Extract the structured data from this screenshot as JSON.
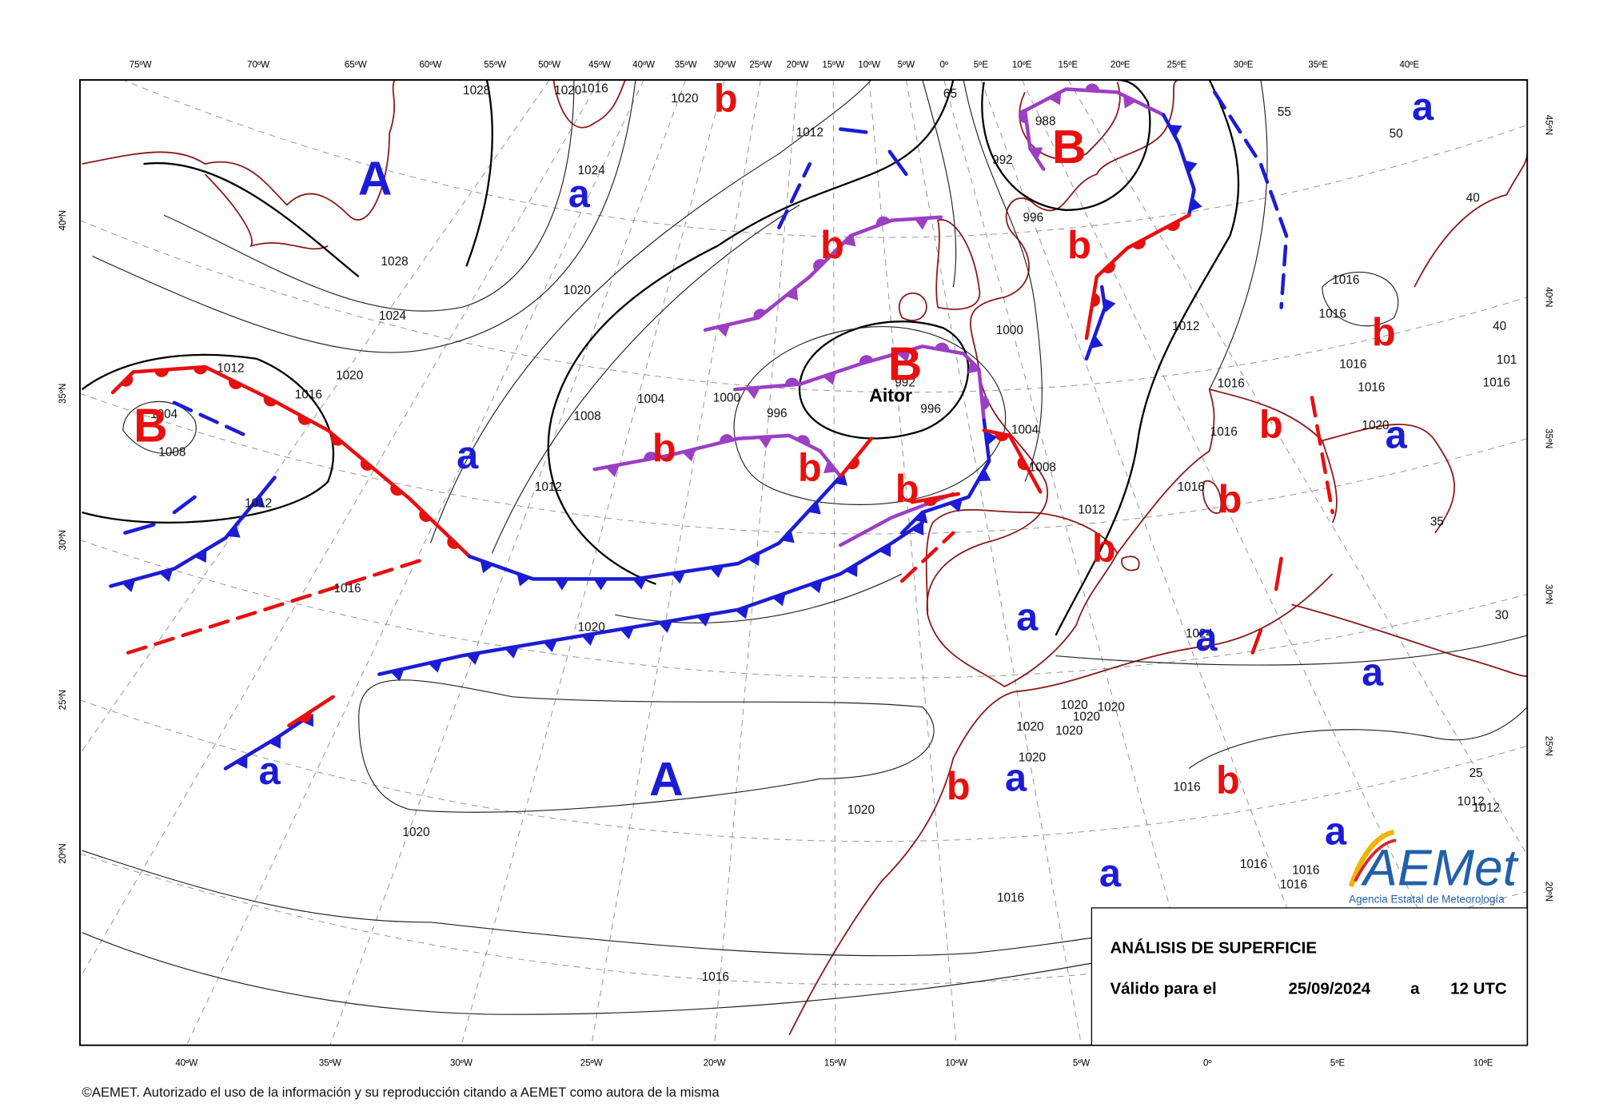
{
  "map": {
    "top_longitudes": [
      "75ºW",
      "70ºW",
      "65ºW",
      "60ºW",
      "55ºW",
      "50ºW",
      "45ºW",
      "40ºW",
      "35ºW",
      "30ºW",
      "25ºW",
      "20ºW",
      "15ºW",
      "10ºW",
      "5ºW",
      "0º",
      "5ºE",
      "10ºE",
      "15ºE",
      "20ºE",
      "25ºE",
      "30ºE",
      "35ºE",
      "40ºE"
    ],
    "bottom_longitudes": [
      "40ºW",
      "35ºW",
      "30ºW",
      "25ºW",
      "20ºW",
      "15ºW",
      "10ºW",
      "5ºW",
      "0º",
      "5ºE",
      "10ºE"
    ],
    "left_latitudes": [
      "40ºN",
      "35ºN",
      "30ºN",
      "25ºN",
      "20ºN"
    ],
    "right_latitudes": [
      "45ºN",
      "40ºN",
      "35ºN",
      "30ºN",
      "25ºN",
      "20ºN"
    ],
    "high_color": "#1c1cd6",
    "low_color": "#e80f0f",
    "highs": [
      "A",
      "a",
      "a",
      "a",
      "a",
      "a",
      "a",
      "a",
      "a",
      "A",
      "a",
      "a",
      "a"
    ],
    "lows": [
      "b",
      "B",
      "b",
      "b",
      "B",
      "B",
      "b",
      "b",
      "b",
      "b",
      "b",
      "b",
      "b",
      "b",
      "b"
    ],
    "storm_name": "Aitor",
    "isobar_labels": [
      "1028",
      "1020",
      "1016",
      "1020",
      "1012",
      "1024",
      "1028",
      "1024",
      "1020",
      "1020",
      "1016",
      "1012",
      "1004",
      "1008",
      "1012",
      "1008",
      "1004",
      "1000",
      "996",
      "996",
      "992",
      "1012",
      "1000",
      "1004",
      "1008",
      "1012",
      "996",
      "992",
      "988",
      "65",
      "55",
      "50",
      "1012",
      "1016",
      "1016",
      "1016",
      "1016",
      "1016",
      "1016",
      "1020",
      "1016",
      "1016",
      "1020",
      "1024",
      "1020",
      "1020",
      "1020",
      "1020",
      "1020",
      "1020",
      "1016",
      "1020",
      "1020",
      "1016",
      "1016",
      "1016",
      "1016",
      "1016",
      "1012",
      "1012",
      "40",
      "40",
      "35",
      "30",
      "25",
      "1016",
      "101"
    ]
  },
  "info_box": {
    "title": "ANÁLISIS DE SUPERFICIE",
    "valid_label": "Válido para el",
    "date": "25/09/2024",
    "at": "a",
    "time": "12 UTC"
  },
  "logo": {
    "name": "AEMet",
    "subtitle": "Agencia Estatal de Meteorología"
  },
  "footer": "©AEMET. Autorizado el uso de la información y su reproducción citando a AEMET como autora de la misma"
}
